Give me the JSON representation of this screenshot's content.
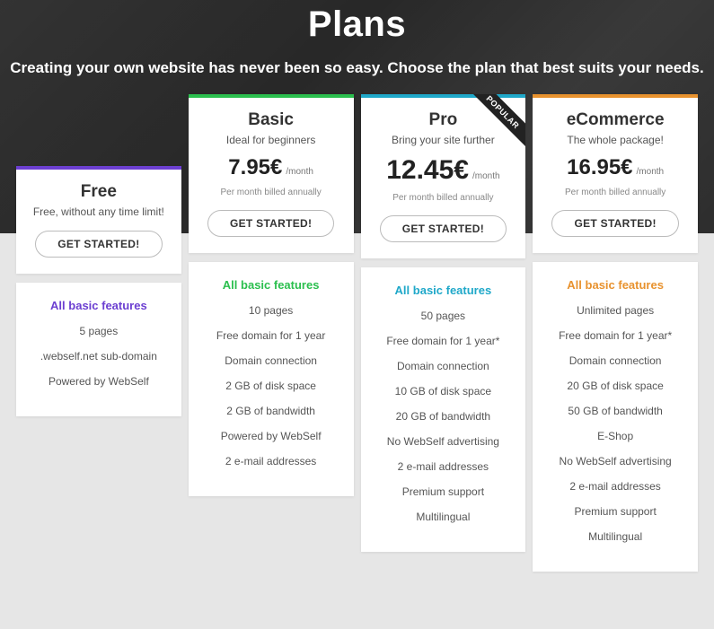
{
  "hero": {
    "title": "Plans",
    "subtitle": "Creating your own website has never been so easy. Choose the plan that best suits your needs."
  },
  "common": {
    "cta_label": "GET STARTED!",
    "per_label": "/month",
    "billing_label": "Per month billed annually",
    "features_heading": "All basic features",
    "popular_label": "POPULAR"
  },
  "plans": [
    {
      "name": "Free",
      "tagline": "Free, without any time limit!",
      "price": "",
      "price_fontsize": 0,
      "accent": "#6c3fd1",
      "feature_title_color": "#6c3fd1",
      "show_price": false,
      "show_billing": false,
      "offset": true,
      "popular": false,
      "features": [
        "5 pages",
        ".webself.net sub-domain",
        "Powered by WebSelf"
      ]
    },
    {
      "name": "Basic",
      "tagline": "Ideal for beginners",
      "price": "7.95€",
      "price_fontsize": 24,
      "accent": "#2bbf4e",
      "feature_title_color": "#2bbf4e",
      "show_price": true,
      "show_billing": true,
      "offset": false,
      "popular": false,
      "features": [
        "10 pages",
        "Free domain for 1 year",
        "Domain connection",
        "2 GB of disk space",
        "2 GB of bandwidth",
        "Powered by WebSelf",
        "2 e-mail addresses"
      ]
    },
    {
      "name": "Pro",
      "tagline": "Bring your site further",
      "price": "12.45€",
      "price_fontsize": 30,
      "accent": "#1fa8c9",
      "feature_title_color": "#1fa8c9",
      "show_price": true,
      "show_billing": true,
      "offset": false,
      "popular": true,
      "features": [
        "50 pages",
        "Free domain for 1 year*",
        "Domain connection",
        "10 GB of disk space",
        "20 GB of bandwidth",
        "No WebSelf advertising",
        "2 e-mail addresses",
        "Premium support",
        "Multilingual"
      ]
    },
    {
      "name": "eCommerce",
      "tagline": "The whole package!",
      "price": "16.95€",
      "price_fontsize": 24,
      "accent": "#e8922e",
      "feature_title_color": "#e8922e",
      "show_price": true,
      "show_billing": true,
      "offset": false,
      "popular": false,
      "features": [
        "Unlimited pages",
        "Free domain for 1 year*",
        "Domain connection",
        "20 GB of disk space",
        "50 GB of bandwidth",
        "E-Shop",
        "No WebSelf advertising",
        "2 e-mail addresses",
        "Premium support",
        "Multilingual"
      ]
    }
  ]
}
